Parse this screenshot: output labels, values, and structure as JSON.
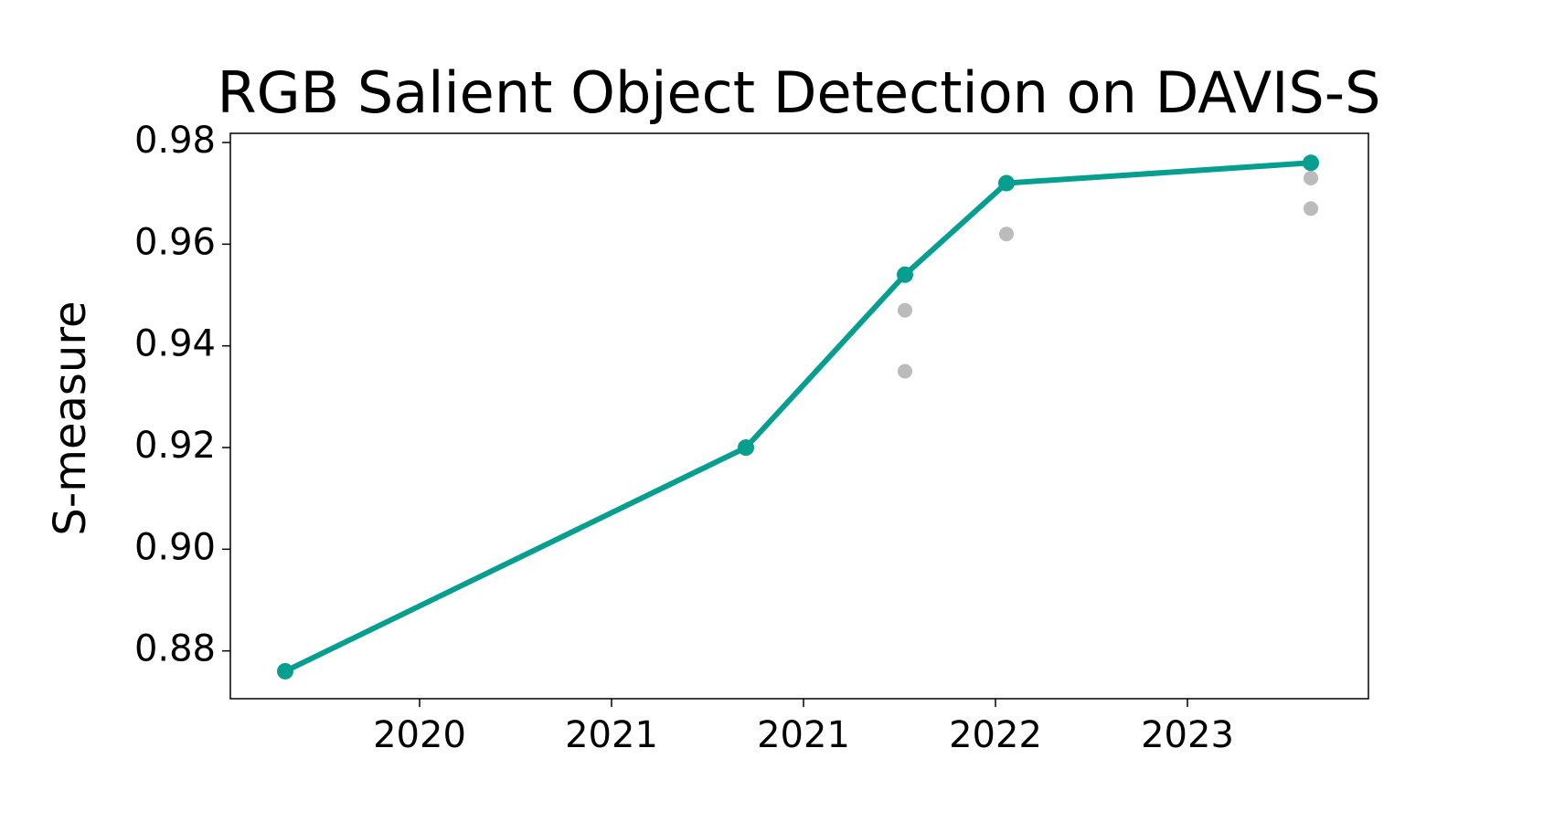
{
  "chart_data": {
    "type": "line",
    "title": "RGB Salient Object Detection on DAVIS-S",
    "ylabel": "S-measure",
    "xlim": [
      2019.61,
      2023.76
    ],
    "ylim": [
      0.8706,
      0.9818
    ],
    "xticks": [
      {
        "value": 2020.3,
        "label": "2020"
      },
      {
        "value": 2021.0,
        "label": "2021"
      },
      {
        "value": 2021.7,
        "label": "2021"
      },
      {
        "value": 2022.4,
        "label": "2022"
      },
      {
        "value": 2023.1,
        "label": "2023"
      }
    ],
    "yticks": [
      {
        "value": 0.88,
        "label": "0.88"
      },
      {
        "value": 0.9,
        "label": "0.90"
      },
      {
        "value": 0.92,
        "label": "0.92"
      },
      {
        "value": 0.94,
        "label": "0.94"
      },
      {
        "value": 0.96,
        "label": "0.96"
      },
      {
        "value": 0.98,
        "label": "0.98"
      }
    ],
    "series": [
      {
        "type": "line",
        "color": "#069f8f",
        "x": [
          2019.81,
          2021.49,
          2022.07,
          2022.44,
          2023.55
        ],
        "values": [
          0.876,
          0.92,
          0.954,
          0.972,
          0.976
        ]
      },
      {
        "type": "scatter",
        "color": "#bbbbbb",
        "x": [
          2022.07,
          2022.07,
          2022.44,
          2023.55,
          2023.55
        ],
        "values": [
          0.947,
          0.935,
          0.962,
          0.973,
          0.967
        ]
      }
    ]
  }
}
